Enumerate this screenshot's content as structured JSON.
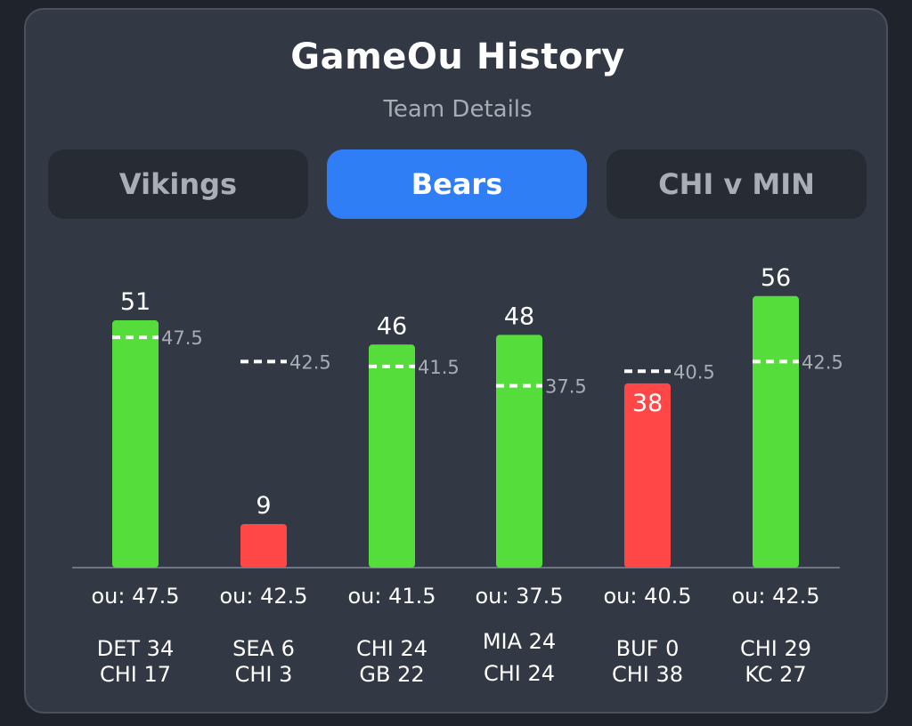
{
  "header": {
    "title": "GameOu History",
    "subtitle": "Team Details"
  },
  "tabs": [
    {
      "label": "Vikings",
      "active": false
    },
    {
      "label": "Bears",
      "active": true
    },
    {
      "label": "CHI v MIN",
      "active": false
    }
  ],
  "colors": {
    "over": "#55dd3c",
    "under": "#ff4747",
    "active_tab": "#2f7ef6"
  },
  "chart_data": {
    "type": "bar",
    "ylim": [
      0,
      60
    ],
    "categories": [
      "DET 34 CHI 17",
      "SEA 6 CHI 3",
      "CHI 24 GB 22",
      "MIA 24 CHI 24",
      "BUF 0 CHI 38",
      "CHI 29 KC 27"
    ],
    "games": [
      {
        "total": 51,
        "total_label": "51",
        "ou": 47.5,
        "ou_label": "47.5",
        "ou_text": "ou: 47.5",
        "line1": "DET 34",
        "line2": "CHI 17",
        "result": "over"
      },
      {
        "total": 9,
        "total_label": "9",
        "ou": 42.5,
        "ou_label": "42.5",
        "ou_text": "ou: 42.5",
        "line1": "SEA 6",
        "line2": "CHI 3",
        "result": "under"
      },
      {
        "total": 46,
        "total_label": "46",
        "ou": 41.5,
        "ou_label": "41.5",
        "ou_text": "ou: 41.5",
        "line1": "CHI 24",
        "line2": "GB 22",
        "result": "over"
      },
      {
        "total": 48,
        "total_label": "48",
        "ou": 37.5,
        "ou_label": "37.5",
        "ou_text": "ou: 37.5",
        "line1": "MIA 24",
        "line2": "CHI 24",
        "result": "over"
      },
      {
        "total": 38,
        "total_label": "38",
        "ou": 40.5,
        "ou_label": "40.5",
        "ou_text": "ou: 40.5",
        "line1": "BUF 0",
        "line2": "CHI 38",
        "result": "under"
      },
      {
        "total": 56,
        "total_label": "56",
        "ou": 42.5,
        "ou_label": "42.5",
        "ou_text": "ou: 42.5",
        "line1": "CHI 29",
        "line2": "KC 27",
        "result": "over"
      }
    ]
  }
}
